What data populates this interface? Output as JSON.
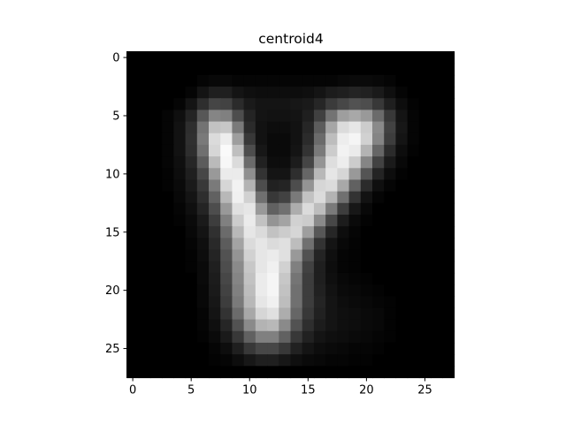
{
  "chart_data": {
    "type": "heatmap",
    "title": "centroid4",
    "colormap": "gray",
    "vmin": 0,
    "vmax": 1,
    "xlim": [
      -0.5,
      27.5
    ],
    "ylim": [
      27.5,
      -0.5
    ],
    "x_ticks": [
      0,
      5,
      10,
      15,
      20,
      25
    ],
    "y_ticks": [
      0,
      5,
      10,
      15,
      20,
      25
    ],
    "x_tick_labels": [
      "0",
      "5",
      "10",
      "15",
      "20",
      "25"
    ],
    "y_tick_labels": [
      "0",
      "5",
      "10",
      "15",
      "20",
      "25"
    ],
    "grid": false,
    "matrix": [
      [
        0,
        0,
        0,
        0,
        0,
        0,
        0,
        0,
        0,
        0,
        0,
        0,
        0,
        0,
        0,
        0,
        0,
        0,
        0,
        0,
        0,
        0,
        0,
        0,
        0,
        0,
        0,
        0
      ],
      [
        0,
        0,
        0,
        0,
        0,
        0,
        0,
        0,
        0,
        0,
        0,
        0,
        0,
        0,
        0,
        0,
        0,
        0,
        0,
        0,
        0,
        0,
        0,
        0,
        0,
        0,
        0,
        0
      ],
      [
        0,
        0,
        0,
        0,
        0,
        0,
        0.02,
        0.03,
        0.03,
        0.02,
        0.02,
        0.02,
        0.02,
        0.02,
        0.02,
        0.02,
        0.02,
        0.02,
        0.03,
        0.04,
        0.04,
        0.03,
        0.02,
        0,
        0,
        0,
        0,
        0
      ],
      [
        0,
        0,
        0,
        0,
        0,
        0.02,
        0.08,
        0.12,
        0.12,
        0.08,
        0.06,
        0.05,
        0.05,
        0.05,
        0.05,
        0.06,
        0.08,
        0.11,
        0.12,
        0.14,
        0.13,
        0.1,
        0.06,
        0.02,
        0,
        0,
        0,
        0
      ],
      [
        0,
        0,
        0,
        0,
        0.02,
        0.08,
        0.18,
        0.27,
        0.26,
        0.17,
        0.1,
        0.08,
        0.08,
        0.08,
        0.09,
        0.1,
        0.15,
        0.23,
        0.28,
        0.32,
        0.3,
        0.22,
        0.12,
        0.05,
        0.01,
        0,
        0,
        0
      ],
      [
        0,
        0,
        0,
        0.02,
        0.06,
        0.14,
        0.34,
        0.52,
        0.5,
        0.3,
        0.14,
        0.08,
        0.07,
        0.07,
        0.08,
        0.12,
        0.25,
        0.45,
        0.62,
        0.66,
        0.6,
        0.42,
        0.22,
        0.08,
        0.02,
        0,
        0,
        0
      ],
      [
        0,
        0,
        0,
        0.02,
        0.07,
        0.18,
        0.45,
        0.76,
        0.78,
        0.48,
        0.17,
        0.07,
        0.05,
        0.05,
        0.07,
        0.15,
        0.36,
        0.65,
        0.86,
        0.9,
        0.8,
        0.54,
        0.26,
        0.09,
        0.02,
        0,
        0,
        0
      ],
      [
        0,
        0,
        0,
        0.02,
        0.07,
        0.19,
        0.48,
        0.86,
        0.93,
        0.62,
        0.22,
        0.07,
        0.04,
        0.04,
        0.07,
        0.17,
        0.42,
        0.74,
        0.93,
        0.96,
        0.82,
        0.52,
        0.24,
        0.08,
        0.02,
        0,
        0,
        0
      ],
      [
        0,
        0,
        0,
        0.02,
        0.07,
        0.18,
        0.44,
        0.84,
        0.98,
        0.75,
        0.3,
        0.09,
        0.04,
        0.04,
        0.08,
        0.2,
        0.48,
        0.8,
        0.95,
        0.92,
        0.7,
        0.4,
        0.17,
        0.05,
        0.01,
        0,
        0,
        0
      ],
      [
        0,
        0,
        0,
        0.02,
        0.06,
        0.15,
        0.36,
        0.73,
        0.97,
        0.86,
        0.42,
        0.13,
        0.05,
        0.05,
        0.11,
        0.27,
        0.58,
        0.87,
        0.93,
        0.8,
        0.52,
        0.26,
        0.1,
        0.03,
        0,
        0,
        0,
        0
      ],
      [
        0,
        0,
        0,
        0.01,
        0.05,
        0.12,
        0.28,
        0.6,
        0.92,
        0.92,
        0.56,
        0.2,
        0.08,
        0.08,
        0.18,
        0.4,
        0.72,
        0.9,
        0.84,
        0.6,
        0.33,
        0.14,
        0.05,
        0.01,
        0,
        0,
        0,
        0
      ],
      [
        0,
        0,
        0,
        0.01,
        0.04,
        0.1,
        0.22,
        0.48,
        0.84,
        0.95,
        0.7,
        0.3,
        0.13,
        0.14,
        0.3,
        0.58,
        0.84,
        0.86,
        0.66,
        0.38,
        0.17,
        0.06,
        0.02,
        0,
        0,
        0,
        0,
        0
      ],
      [
        0,
        0,
        0,
        0,
        0.03,
        0.08,
        0.18,
        0.38,
        0.72,
        0.94,
        0.82,
        0.44,
        0.22,
        0.26,
        0.48,
        0.76,
        0.86,
        0.7,
        0.44,
        0.2,
        0.07,
        0.02,
        0,
        0,
        0,
        0,
        0,
        0
      ],
      [
        0,
        0,
        0,
        0,
        0.02,
        0.06,
        0.14,
        0.3,
        0.6,
        0.88,
        0.9,
        0.6,
        0.38,
        0.44,
        0.68,
        0.86,
        0.74,
        0.48,
        0.24,
        0.09,
        0.03,
        0,
        0,
        0,
        0,
        0,
        0,
        0
      ],
      [
        0,
        0,
        0,
        0,
        0.01,
        0.04,
        0.1,
        0.24,
        0.5,
        0.8,
        0.92,
        0.76,
        0.58,
        0.64,
        0.82,
        0.8,
        0.54,
        0.28,
        0.11,
        0.04,
        0.01,
        0,
        0,
        0,
        0,
        0,
        0,
        0
      ],
      [
        0,
        0,
        0,
        0,
        0,
        0.03,
        0.08,
        0.19,
        0.42,
        0.72,
        0.9,
        0.86,
        0.76,
        0.8,
        0.84,
        0.62,
        0.34,
        0.15,
        0.05,
        0.02,
        0,
        0,
        0,
        0,
        0,
        0,
        0,
        0
      ],
      [
        0,
        0,
        0,
        0,
        0,
        0.02,
        0.06,
        0.16,
        0.36,
        0.64,
        0.86,
        0.9,
        0.86,
        0.88,
        0.74,
        0.44,
        0.2,
        0.08,
        0.03,
        0.01,
        0,
        0,
        0,
        0,
        0,
        0,
        0,
        0
      ],
      [
        0,
        0,
        0,
        0,
        0,
        0.01,
        0.05,
        0.14,
        0.32,
        0.58,
        0.82,
        0.9,
        0.92,
        0.88,
        0.6,
        0.32,
        0.14,
        0.06,
        0.02,
        0.01,
        0,
        0,
        0,
        0,
        0,
        0,
        0,
        0
      ],
      [
        0,
        0,
        0,
        0,
        0,
        0.01,
        0.04,
        0.12,
        0.3,
        0.54,
        0.78,
        0.9,
        0.94,
        0.82,
        0.5,
        0.26,
        0.12,
        0.05,
        0.02,
        0.01,
        0,
        0,
        0,
        0,
        0,
        0,
        0,
        0
      ],
      [
        0,
        0,
        0,
        0,
        0,
        0,
        0.04,
        0.11,
        0.28,
        0.52,
        0.76,
        0.92,
        0.96,
        0.78,
        0.46,
        0.24,
        0.12,
        0.06,
        0.03,
        0.02,
        0.01,
        0,
        0,
        0,
        0,
        0,
        0,
        0
      ],
      [
        0,
        0,
        0,
        0,
        0,
        0,
        0.03,
        0.1,
        0.26,
        0.5,
        0.74,
        0.92,
        0.96,
        0.76,
        0.44,
        0.24,
        0.13,
        0.07,
        0.04,
        0.03,
        0.02,
        0.01,
        0,
        0,
        0,
        0,
        0,
        0
      ],
      [
        0,
        0,
        0,
        0,
        0,
        0,
        0.03,
        0.09,
        0.24,
        0.48,
        0.72,
        0.9,
        0.94,
        0.74,
        0.44,
        0.24,
        0.14,
        0.08,
        0.05,
        0.04,
        0.03,
        0.02,
        0.01,
        0,
        0,
        0,
        0,
        0
      ],
      [
        0,
        0,
        0,
        0,
        0,
        0,
        0.02,
        0.08,
        0.2,
        0.42,
        0.66,
        0.84,
        0.88,
        0.68,
        0.4,
        0.22,
        0.13,
        0.08,
        0.06,
        0.05,
        0.04,
        0.03,
        0.01,
        0,
        0,
        0,
        0,
        0
      ],
      [
        0,
        0,
        0,
        0,
        0,
        0,
        0.02,
        0.06,
        0.15,
        0.32,
        0.54,
        0.7,
        0.72,
        0.54,
        0.32,
        0.18,
        0.11,
        0.08,
        0.06,
        0.05,
        0.04,
        0.03,
        0.01,
        0,
        0,
        0,
        0,
        0
      ],
      [
        0,
        0,
        0,
        0,
        0,
        0,
        0.01,
        0.04,
        0.1,
        0.22,
        0.38,
        0.5,
        0.5,
        0.38,
        0.22,
        0.13,
        0.08,
        0.06,
        0.05,
        0.04,
        0.03,
        0.02,
        0.01,
        0,
        0,
        0,
        0,
        0
      ],
      [
        0,
        0,
        0,
        0,
        0,
        0,
        0,
        0.02,
        0.05,
        0.12,
        0.22,
        0.28,
        0.28,
        0.22,
        0.13,
        0.08,
        0.05,
        0.04,
        0.03,
        0.02,
        0.02,
        0.01,
        0,
        0,
        0,
        0,
        0,
        0
      ],
      [
        0,
        0,
        0,
        0,
        0,
        0,
        0,
        0.01,
        0.02,
        0.05,
        0.09,
        0.12,
        0.12,
        0.09,
        0.06,
        0.04,
        0.03,
        0.02,
        0.02,
        0.01,
        0.01,
        0,
        0,
        0,
        0,
        0,
        0,
        0
      ],
      [
        0,
        0,
        0,
        0,
        0,
        0,
        0,
        0,
        0,
        0,
        0,
        0,
        0,
        0,
        0,
        0,
        0,
        0,
        0,
        0,
        0,
        0,
        0,
        0,
        0,
        0,
        0,
        0
      ]
    ]
  }
}
